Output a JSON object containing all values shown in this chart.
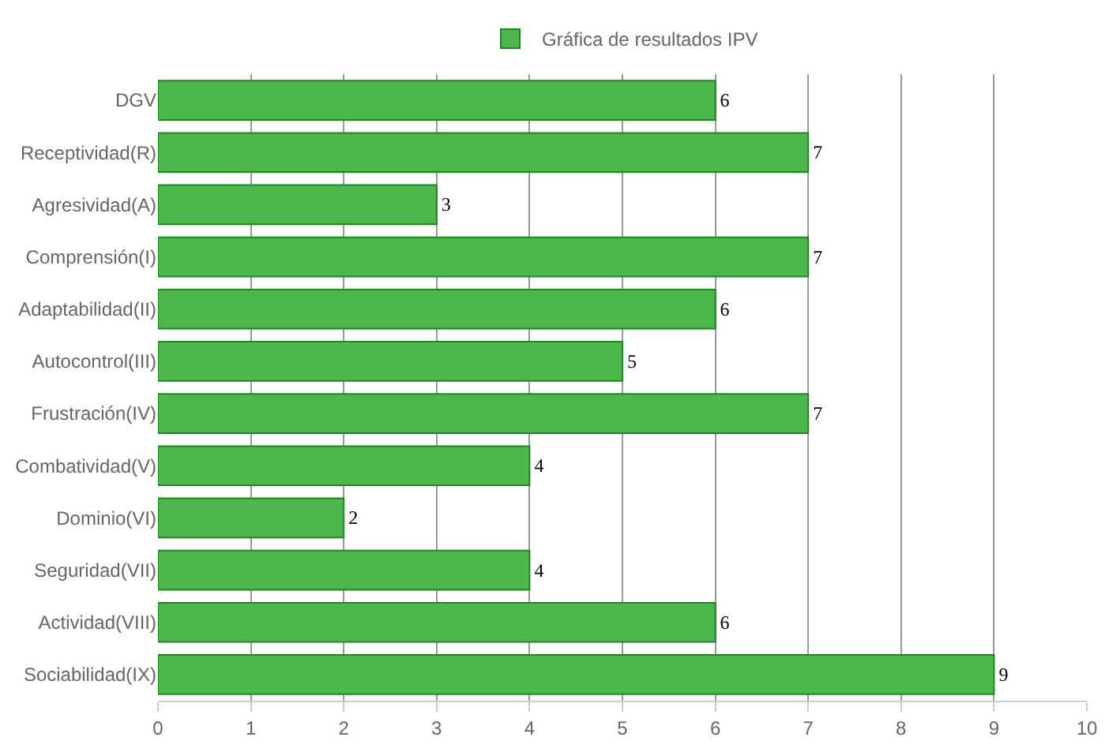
{
  "chart_data": {
    "type": "bar",
    "orientation": "horizontal",
    "categories": [
      "DGV",
      "Receptividad(R)",
      "Agresividad(A)",
      "Comprensión(I)",
      "Adaptabilidad(II)",
      "Autocontrol(III)",
      "Frustración(IV)",
      "Combatividad(V)",
      "Dominio(VI)",
      "Seguridad(VII)",
      "Actividad(VIII)",
      "Sociabilidad(IX)"
    ],
    "series": [
      {
        "name": "Gráfica de resultados IPV",
        "color": "#4db74d",
        "values": [
          6,
          7,
          3,
          7,
          6,
          5,
          7,
          4,
          2,
          4,
          6,
          9
        ]
      }
    ],
    "xlim": [
      0,
      10
    ],
    "xticks": [
      0,
      1,
      2,
      3,
      4,
      5,
      6,
      7,
      8,
      9,
      10
    ],
    "grid": "x",
    "legend": "top",
    "data_labels": true
  }
}
